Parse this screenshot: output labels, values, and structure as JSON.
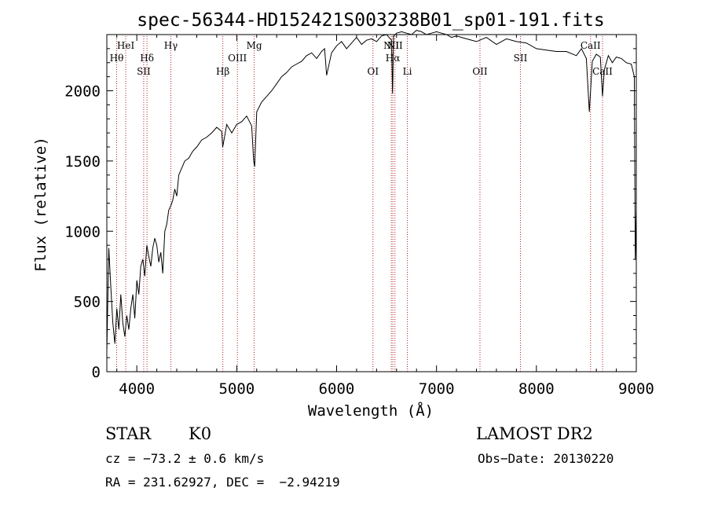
{
  "chart_data": {
    "type": "line",
    "title": "spec-56344-HD152421S003238B01_sp01-191.fits",
    "xlabel": "Wavelength (Å)",
    "ylabel": "Flux (relative)",
    "xlim": [
      3700,
      9000
    ],
    "ylim": [
      0,
      2400
    ],
    "xticks": [
      4000,
      5000,
      6000,
      7000,
      8000,
      9000
    ],
    "yticks": [
      0,
      500,
      1000,
      1500,
      2000
    ],
    "series": [
      {
        "name": "flux",
        "x": [
          3700,
          3720,
          3740,
          3760,
          3780,
          3800,
          3820,
          3840,
          3860,
          3880,
          3900,
          3920,
          3940,
          3960,
          3980,
          4000,
          4020,
          4040,
          4060,
          4080,
          4100,
          4120,
          4140,
          4160,
          4180,
          4200,
          4220,
          4240,
          4260,
          4280,
          4300,
          4320,
          4340,
          4360,
          4380,
          4400,
          4420,
          4450,
          4480,
          4520,
          4560,
          4600,
          4650,
          4700,
          4750,
          4800,
          4850,
          4860,
          4880,
          4900,
          4950,
          5000,
          5050,
          5100,
          5150,
          5170,
          5180,
          5200,
          5250,
          5300,
          5350,
          5400,
          5450,
          5500,
          5550,
          5600,
          5650,
          5700,
          5750,
          5800,
          5850,
          5880,
          5900,
          5950,
          6000,
          6050,
          6100,
          6150,
          6200,
          6250,
          6300,
          6350,
          6400,
          6450,
          6500,
          6550,
          6560,
          6563,
          6570,
          6600,
          6650,
          6700,
          6750,
          6800,
          6850,
          6900,
          6950,
          7000,
          7050,
          7100,
          7150,
          7200,
          7300,
          7400,
          7500,
          7600,
          7700,
          7800,
          7900,
          8000,
          8100,
          8200,
          8300,
          8400,
          8450,
          8500,
          8530,
          8542,
          8560,
          8600,
          8640,
          8662,
          8680,
          8720,
          8760,
          8800,
          8850,
          8900,
          8950,
          8980,
          8990,
          9000
        ],
        "y": [
          150,
          880,
          600,
          350,
          200,
          450,
          300,
          550,
          350,
          250,
          400,
          300,
          450,
          550,
          380,
          650,
          550,
          750,
          800,
          680,
          900,
          820,
          750,
          880,
          950,
          900,
          780,
          850,
          700,
          1000,
          1050,
          1150,
          1180,
          1220,
          1300,
          1250,
          1400,
          1450,
          1500,
          1520,
          1570,
          1600,
          1650,
          1670,
          1700,
          1740,
          1710,
          1600,
          1680,
          1760,
          1700,
          1760,
          1780,
          1820,
          1750,
          1500,
          1460,
          1850,
          1920,
          1960,
          2000,
          2050,
          2100,
          2130,
          2170,
          2190,
          2210,
          2250,
          2270,
          2230,
          2280,
          2300,
          2110,
          2270,
          2320,
          2350,
          2300,
          2340,
          2380,
          2330,
          2360,
          2370,
          2350,
          2390,
          2400,
          2360,
          1980,
          2080,
          2390,
          2410,
          2420,
          2410,
          2400,
          2430,
          2420,
          2400,
          2410,
          2420,
          2410,
          2400,
          2380,
          2390,
          2370,
          2350,
          2380,
          2330,
          2370,
          2350,
          2340,
          2300,
          2290,
          2280,
          2280,
          2250,
          2300,
          2230,
          1850,
          2000,
          2210,
          2260,
          2240,
          1960,
          2150,
          2250,
          2200,
          2240,
          2230,
          2200,
          2190,
          2100,
          800,
          1150
        ]
      }
    ],
    "lines": [
      {
        "label": "Hθ",
        "x": 3798,
        "row": 2
      },
      {
        "label": "HeI",
        "x": 3889,
        "row": 1
      },
      {
        "label": "SII",
        "x": 4069,
        "row": 3
      },
      {
        "label": "Hδ",
        "x": 4102,
        "row": 2
      },
      {
        "label": "Hγ",
        "x": 4341,
        "row": 1
      },
      {
        "label": "Hβ",
        "x": 4861,
        "row": 3
      },
      {
        "label": "OIII",
        "x": 5007,
        "row": 2
      },
      {
        "label": "Mg",
        "x": 5175,
        "row": 1
      },
      {
        "label": "OI",
        "x": 6364,
        "row": 3
      },
      {
        "label": "NII",
        "x": 6548,
        "row": 1
      },
      {
        "label": "Hα",
        "x": 6563,
        "row": 2
      },
      {
        "label": "NII",
        "x": 6584,
        "row": 1
      },
      {
        "label": "Li",
        "x": 6708,
        "row": 3
      },
      {
        "label": "OII",
        "x": 7435,
        "row": 3
      },
      {
        "label": "SII",
        "x": 7840,
        "row": 2
      },
      {
        "label": "CaII",
        "x": 8542,
        "row": 1
      },
      {
        "label": "CaII",
        "x": 8662,
        "row": 3
      }
    ]
  },
  "info": {
    "class": "STAR",
    "subclass": "K0",
    "survey": "LAMOST DR2",
    "cz": "cz = −73.2 ± 0.6 km/s",
    "obs_date": "Obs−Date: 20130220",
    "coords": "RA = 231.62927, DEC =  −2.94219"
  }
}
